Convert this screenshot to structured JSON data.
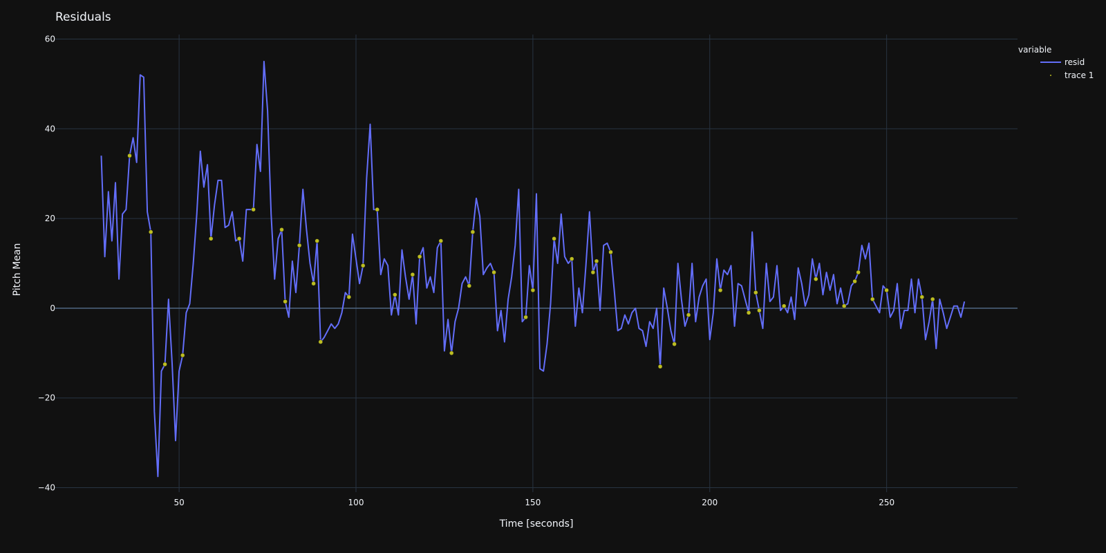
{
  "chart_data": {
    "type": "line",
    "title": "Residuals",
    "xlabel": "Time [seconds]",
    "ylabel": "Pitch Mean",
    "xlim": [
      15,
      287
    ],
    "ylim": [
      -41,
      61
    ],
    "x_ticks": [
      50,
      100,
      150,
      200,
      250
    ],
    "y_ticks": [
      -40,
      -20,
      0,
      20,
      40,
      60
    ],
    "x_tick_labels": [
      "50",
      "100",
      "150",
      "200",
      "250"
    ],
    "y_tick_labels": [
      "−40",
      "−20",
      "0",
      "20",
      "40",
      "60"
    ],
    "grid": true,
    "legend": {
      "title": "variable",
      "position": "top-right"
    },
    "series": [
      {
        "name": "resid",
        "mode": "line",
        "color": "#636efa",
        "points": [
          [
            28,
            34
          ],
          [
            29,
            11.5
          ],
          [
            30,
            26
          ],
          [
            31,
            15
          ],
          [
            32,
            28
          ],
          [
            33,
            6.5
          ],
          [
            34,
            21
          ],
          [
            35,
            22
          ],
          [
            36,
            34
          ],
          [
            37,
            38
          ],
          [
            38,
            32.5
          ],
          [
            39,
            52
          ],
          [
            40,
            51.5
          ],
          [
            41,
            21.5
          ],
          [
            42,
            17
          ],
          [
            43,
            -23
          ],
          [
            44,
            -37.5
          ],
          [
            45,
            -14
          ],
          [
            46,
            -12.5
          ],
          [
            47,
            2
          ],
          [
            48,
            -12
          ],
          [
            49,
            -29.5
          ],
          [
            50,
            -14
          ],
          [
            51,
            -10.5
          ],
          [
            52,
            -1
          ],
          [
            53,
            1
          ],
          [
            54,
            10
          ],
          [
            55,
            21
          ],
          [
            56,
            35
          ],
          [
            57,
            27
          ],
          [
            58,
            32
          ],
          [
            59,
            15.5
          ],
          [
            60,
            23
          ],
          [
            61,
            28.5
          ],
          [
            62,
            28.5
          ],
          [
            63,
            18
          ],
          [
            64,
            18.5
          ],
          [
            65,
            21.5
          ],
          [
            66,
            15
          ],
          [
            67,
            15.5
          ],
          [
            68,
            10.5
          ],
          [
            69,
            22
          ],
          [
            70,
            22
          ],
          [
            71,
            22
          ],
          [
            72,
            36.5
          ],
          [
            73,
            30.5
          ],
          [
            74,
            55
          ],
          [
            75,
            44
          ],
          [
            76,
            21
          ],
          [
            77,
            6.5
          ],
          [
            78,
            15.5
          ],
          [
            79,
            17.5
          ],
          [
            80,
            1.5
          ],
          [
            81,
            -2
          ],
          [
            82,
            10.5
          ],
          [
            83,
            3.5
          ],
          [
            84,
            14
          ],
          [
            85,
            26.5
          ],
          [
            86,
            17.5
          ],
          [
            87,
            10
          ],
          [
            88,
            5.5
          ],
          [
            89,
            15
          ],
          [
            90,
            -7.5
          ],
          [
            91,
            -6.5
          ],
          [
            92,
            -5
          ],
          [
            93,
            -3.5
          ],
          [
            94,
            -4.5
          ],
          [
            95,
            -3.5
          ],
          [
            96,
            -1
          ],
          [
            97,
            3.5
          ],
          [
            98,
            2.5
          ],
          [
            99,
            16.5
          ],
          [
            100,
            11
          ],
          [
            101,
            5.5
          ],
          [
            102,
            9.5
          ],
          [
            103,
            29
          ],
          [
            104,
            41
          ],
          [
            105,
            22
          ],
          [
            106,
            22
          ],
          [
            107,
            7.5
          ],
          [
            108,
            11
          ],
          [
            109,
            9.5
          ],
          [
            110,
            -1.5
          ],
          [
            111,
            3
          ],
          [
            112,
            -1.5
          ],
          [
            113,
            13
          ],
          [
            114,
            7
          ],
          [
            115,
            2
          ],
          [
            116,
            7.5
          ],
          [
            117,
            -3.5
          ],
          [
            118,
            11.5
          ],
          [
            119,
            13.5
          ],
          [
            120,
            4.5
          ],
          [
            121,
            7
          ],
          [
            122,
            3.5
          ],
          [
            123,
            13.5
          ],
          [
            124,
            15
          ],
          [
            125,
            -9.5
          ],
          [
            126,
            -2.5
          ],
          [
            127,
            -10
          ],
          [
            128,
            -3
          ],
          [
            129,
            0
          ],
          [
            130,
            5.5
          ],
          [
            131,
            7
          ],
          [
            132,
            5
          ],
          [
            133,
            17
          ],
          [
            134,
            24.5
          ],
          [
            135,
            20.5
          ],
          [
            136,
            7.5
          ],
          [
            137,
            9
          ],
          [
            138,
            10
          ],
          [
            139,
            8
          ],
          [
            140,
            -5
          ],
          [
            141,
            -0.5
          ],
          [
            142,
            -7.5
          ],
          [
            143,
            2
          ],
          [
            144,
            7
          ],
          [
            145,
            14
          ],
          [
            146,
            26.5
          ],
          [
            147,
            -3
          ],
          [
            148,
            -2
          ],
          [
            149,
            9.5
          ],
          [
            150,
            4
          ],
          [
            151,
            25.5
          ],
          [
            152,
            -13.5
          ],
          [
            153,
            -14
          ],
          [
            154,
            -8
          ],
          [
            155,
            1
          ],
          [
            156,
            15.5
          ],
          [
            157,
            10
          ],
          [
            158,
            21
          ],
          [
            159,
            11.5
          ],
          [
            160,
            10
          ],
          [
            161,
            11
          ],
          [
            162,
            -4
          ],
          [
            163,
            4.5
          ],
          [
            164,
            -1
          ],
          [
            165,
            9.5
          ],
          [
            166,
            21.5
          ],
          [
            167,
            8
          ],
          [
            168,
            10.5
          ],
          [
            169,
            -0.5
          ],
          [
            170,
            14
          ],
          [
            171,
            14.5
          ],
          [
            172,
            12.5
          ],
          [
            173,
            4
          ],
          [
            174,
            -5
          ],
          [
            175,
            -4.5
          ],
          [
            176,
            -1.5
          ],
          [
            177,
            -3.5
          ],
          [
            178,
            -1
          ],
          [
            179,
            0
          ],
          [
            180,
            -4.5
          ],
          [
            181,
            -5
          ],
          [
            182,
            -8.5
          ],
          [
            183,
            -3
          ],
          [
            184,
            -4.5
          ],
          [
            185,
            0
          ],
          [
            186,
            -13
          ],
          [
            187,
            4.5
          ],
          [
            188,
            0
          ],
          [
            189,
            -5
          ],
          [
            190,
            -8
          ],
          [
            191,
            10
          ],
          [
            192,
            2
          ],
          [
            193,
            -4
          ],
          [
            194,
            -1.5
          ],
          [
            195,
            10
          ],
          [
            196,
            -3
          ],
          [
            197,
            2.5
          ],
          [
            198,
            5
          ],
          [
            199,
            6.5
          ],
          [
            200,
            -7
          ],
          [
            201,
            -1
          ],
          [
            202,
            11
          ],
          [
            203,
            4
          ],
          [
            204,
            8.5
          ],
          [
            205,
            7.5
          ],
          [
            206,
            9.5
          ],
          [
            207,
            -4
          ],
          [
            208,
            5.5
          ],
          [
            209,
            5
          ],
          [
            210,
            2
          ],
          [
            211,
            -1
          ],
          [
            212,
            17
          ],
          [
            213,
            3.5
          ],
          [
            214,
            -0.5
          ],
          [
            215,
            -4.5
          ],
          [
            216,
            10
          ],
          [
            217,
            1.5
          ],
          [
            218,
            2.5
          ],
          [
            219,
            9.5
          ],
          [
            220,
            -0.5
          ],
          [
            221,
            0.5
          ],
          [
            222,
            -1
          ],
          [
            223,
            2.5
          ],
          [
            224,
            -2.5
          ],
          [
            225,
            9
          ],
          [
            226,
            5.5
          ],
          [
            227,
            0.5
          ],
          [
            228,
            3
          ],
          [
            229,
            11
          ],
          [
            230,
            6.5
          ],
          [
            231,
            10
          ],
          [
            232,
            3
          ],
          [
            233,
            8
          ],
          [
            234,
            4
          ],
          [
            235,
            7.5
          ],
          [
            236,
            1
          ],
          [
            237,
            4.5
          ],
          [
            238,
            0.5
          ],
          [
            239,
            1
          ],
          [
            240,
            5
          ],
          [
            241,
            6
          ],
          [
            242,
            8
          ],
          [
            243,
            14
          ],
          [
            244,
            11
          ],
          [
            245,
            14.5
          ],
          [
            246,
            2
          ],
          [
            247,
            0.5
          ],
          [
            248,
            -1
          ],
          [
            249,
            5
          ],
          [
            250,
            4
          ],
          [
            251,
            -2
          ],
          [
            252,
            -0.5
          ],
          [
            253,
            5.5
          ],
          [
            254,
            -4.5
          ],
          [
            255,
            -0.5
          ],
          [
            256,
            -0.5
          ],
          [
            257,
            6.5
          ],
          [
            258,
            -1
          ],
          [
            259,
            6.5
          ],
          [
            260,
            2.5
          ],
          [
            261,
            -7
          ],
          [
            262,
            -3
          ],
          [
            263,
            2
          ],
          [
            264,
            -9
          ],
          [
            265,
            2
          ],
          [
            266,
            -1
          ],
          [
            267,
            -4.5
          ],
          [
            268,
            -2
          ],
          [
            269,
            0.5
          ],
          [
            270,
            0.5
          ],
          [
            271,
            -2
          ],
          [
            272,
            1.5
          ]
        ]
      },
      {
        "name": "trace 1",
        "mode": "markers",
        "color": "#bcbd22",
        "points": [
          [
            36,
            34
          ],
          [
            42,
            17
          ],
          [
            46,
            -12.5
          ],
          [
            51,
            -10.5
          ],
          [
            59,
            15.5
          ],
          [
            67,
            15.5
          ],
          [
            71,
            22
          ],
          [
            79,
            17.5
          ],
          [
            80,
            1.5
          ],
          [
            84,
            14
          ],
          [
            88,
            5.5
          ],
          [
            89,
            15
          ],
          [
            90,
            -7.5
          ],
          [
            98,
            2.5
          ],
          [
            102,
            9.5
          ],
          [
            106,
            22
          ],
          [
            111,
            3
          ],
          [
            116,
            7.5
          ],
          [
            118,
            11.5
          ],
          [
            124,
            15
          ],
          [
            127,
            -10
          ],
          [
            132,
            5
          ],
          [
            133,
            17
          ],
          [
            139,
            8
          ],
          [
            148,
            -2
          ],
          [
            150,
            4
          ],
          [
            156,
            15.5
          ],
          [
            161,
            11
          ],
          [
            167,
            8
          ],
          [
            168,
            10.5
          ],
          [
            172,
            12.5
          ],
          [
            186,
            -13
          ],
          [
            190,
            -8
          ],
          [
            194,
            -1.5
          ],
          [
            203,
            4
          ],
          [
            211,
            -1
          ],
          [
            213,
            3.5
          ],
          [
            214,
            -0.5
          ],
          [
            221,
            0.5
          ],
          [
            230,
            6.5
          ],
          [
            238,
            0.5
          ],
          [
            241,
            6
          ],
          [
            242,
            8
          ],
          [
            246,
            2
          ],
          [
            250,
            4
          ],
          [
            260,
            2.5
          ],
          [
            263,
            2
          ]
        ]
      }
    ]
  }
}
